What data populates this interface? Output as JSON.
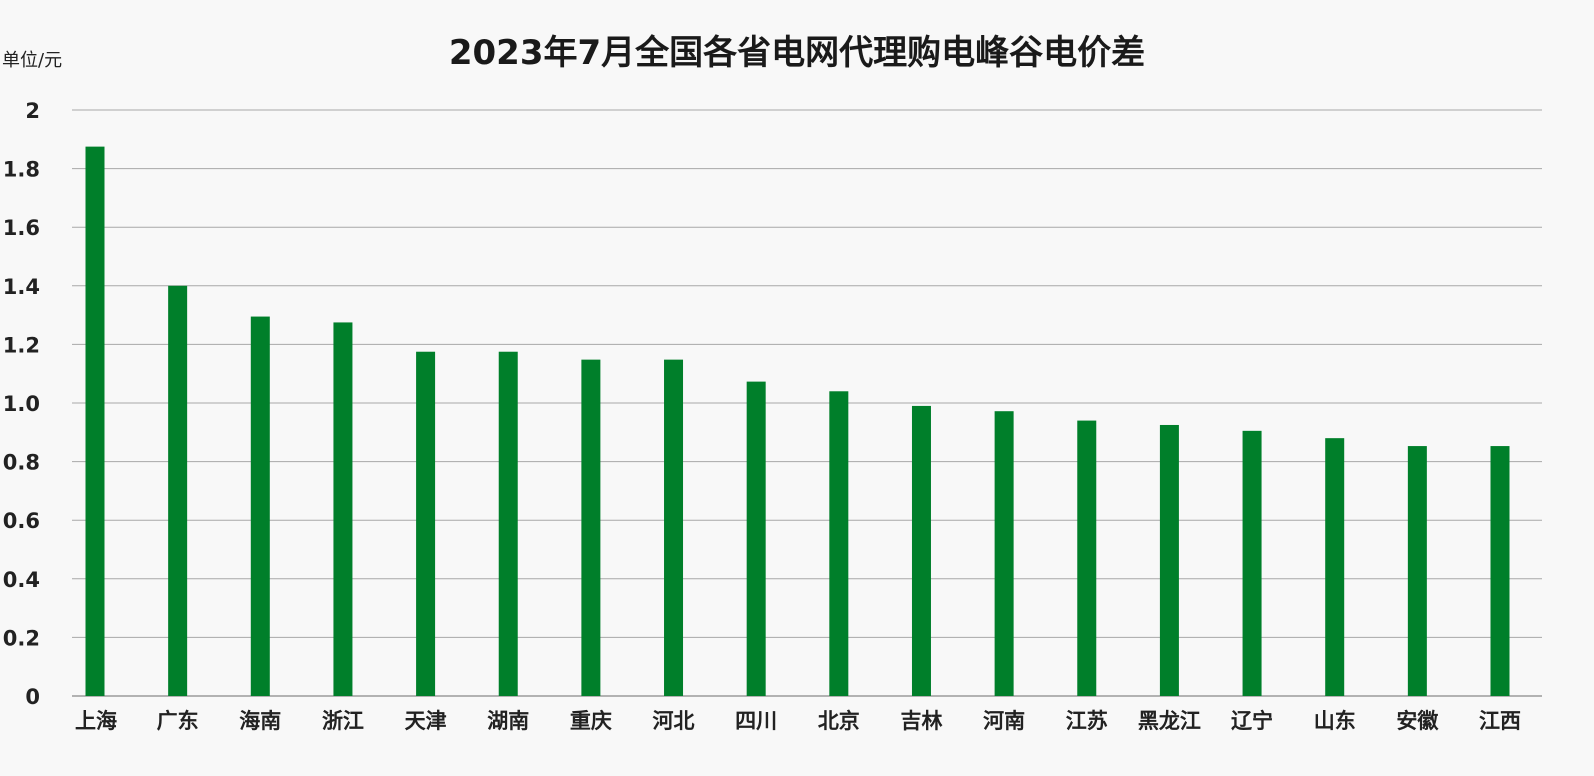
{
  "chart_data": {
    "type": "bar",
    "title": "2023年7月全国各省电网代理购电峰谷电价差",
    "unit_label": "单位/元",
    "xlabel": "",
    "ylabel": "",
    "ylim": [
      0,
      2
    ],
    "yticks": [
      "0",
      "0.2",
      "0.4",
      "0.6",
      "0.8",
      "1.0",
      "1.2",
      "1.4",
      "1.6",
      "1.8",
      "2"
    ],
    "grid": true,
    "bar_color": "#007f2a",
    "categories": [
      "上海",
      "广东",
      "海南",
      "浙江",
      "天津",
      "湖南",
      "重庆",
      "河北",
      "四川",
      "北京",
      "吉林",
      "河南",
      "江苏",
      "黑龙江",
      "辽宁",
      "山东",
      "安徽",
      "江西"
    ],
    "values": [
      1.875,
      1.4,
      1.295,
      1.275,
      1.175,
      1.175,
      1.148,
      1.148,
      1.073,
      1.04,
      0.99,
      0.972,
      0.94,
      0.925,
      0.905,
      0.88,
      0.853,
      0.853
    ]
  }
}
